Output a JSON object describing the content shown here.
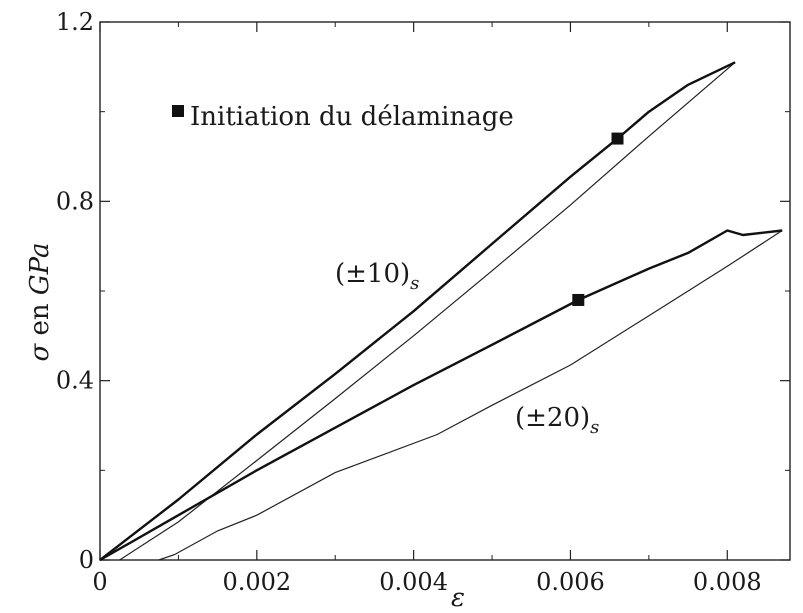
{
  "chart_data": {
    "type": "line",
    "title": "",
    "xlabel": "ε",
    "ylabel": "σ en GPa",
    "ylabel_parts": {
      "symbol": "σ",
      "word": "en",
      "unit": "GPa"
    },
    "xlim": [
      0,
      0.0088
    ],
    "ylim": [
      0,
      1.2
    ],
    "x_ticks": [
      "0",
      "0.002",
      "0.004",
      "0.006",
      "0.008"
    ],
    "x_tick_values": [
      0,
      0.002,
      0.004,
      0.006,
      0.008
    ],
    "y_ticks": [
      "0",
      "0.4",
      "0.8",
      "1.2"
    ],
    "y_tick_values": [
      0,
      0.4,
      0.8,
      1.2
    ],
    "grid": false,
    "legend": {
      "marker": "filled-square",
      "label": "Initiation du délaminage",
      "placement": "top-left"
    },
    "series": [
      {
        "label_text": "(±10)",
        "label_sub": "s",
        "loading": [
          [
            0,
            0
          ],
          [
            0.001,
            0.135
          ],
          [
            0.002,
            0.28
          ],
          [
            0.003,
            0.415
          ],
          [
            0.004,
            0.555
          ],
          [
            0.005,
            0.705
          ],
          [
            0.006,
            0.855
          ],
          [
            0.0066,
            0.94
          ],
          [
            0.007,
            1.0
          ],
          [
            0.0075,
            1.06
          ],
          [
            0.0081,
            1.11
          ]
        ],
        "unloading": [
          [
            0.0081,
            1.11
          ],
          [
            0.0079,
            1.08
          ],
          [
            0.007,
            0.945
          ],
          [
            0.006,
            0.792
          ],
          [
            0.005,
            0.645
          ],
          [
            0.004,
            0.5
          ],
          [
            0.003,
            0.36
          ],
          [
            0.002,
            0.222
          ],
          [
            0.001,
            0.085
          ],
          [
            0.00025,
            0
          ]
        ],
        "delamination_initiation": [
          0.0066,
          0.94
        ]
      },
      {
        "label_text": "(±20)",
        "label_sub": "s",
        "loading": [
          [
            0,
            0
          ],
          [
            0.001,
            0.1
          ],
          [
            0.002,
            0.2
          ],
          [
            0.003,
            0.295
          ],
          [
            0.004,
            0.39
          ],
          [
            0.005,
            0.48
          ],
          [
            0.0061,
            0.58
          ],
          [
            0.007,
            0.65
          ],
          [
            0.0075,
            0.685
          ],
          [
            0.008,
            0.735
          ],
          [
            0.0082,
            0.725
          ],
          [
            0.0087,
            0.735
          ]
        ],
        "unloading": [
          [
            0.0087,
            0.735
          ],
          [
            0.008,
            0.655
          ],
          [
            0.007,
            0.545
          ],
          [
            0.006,
            0.435
          ],
          [
            0.005,
            0.345
          ],
          [
            0.0043,
            0.28
          ],
          [
            0.003,
            0.195
          ],
          [
            0.002,
            0.1
          ],
          [
            0.0015,
            0.065
          ],
          [
            0.00095,
            0.012
          ],
          [
            0.00075,
            0
          ]
        ],
        "delamination_initiation": [
          0.0061,
          0.58
        ]
      }
    ]
  }
}
